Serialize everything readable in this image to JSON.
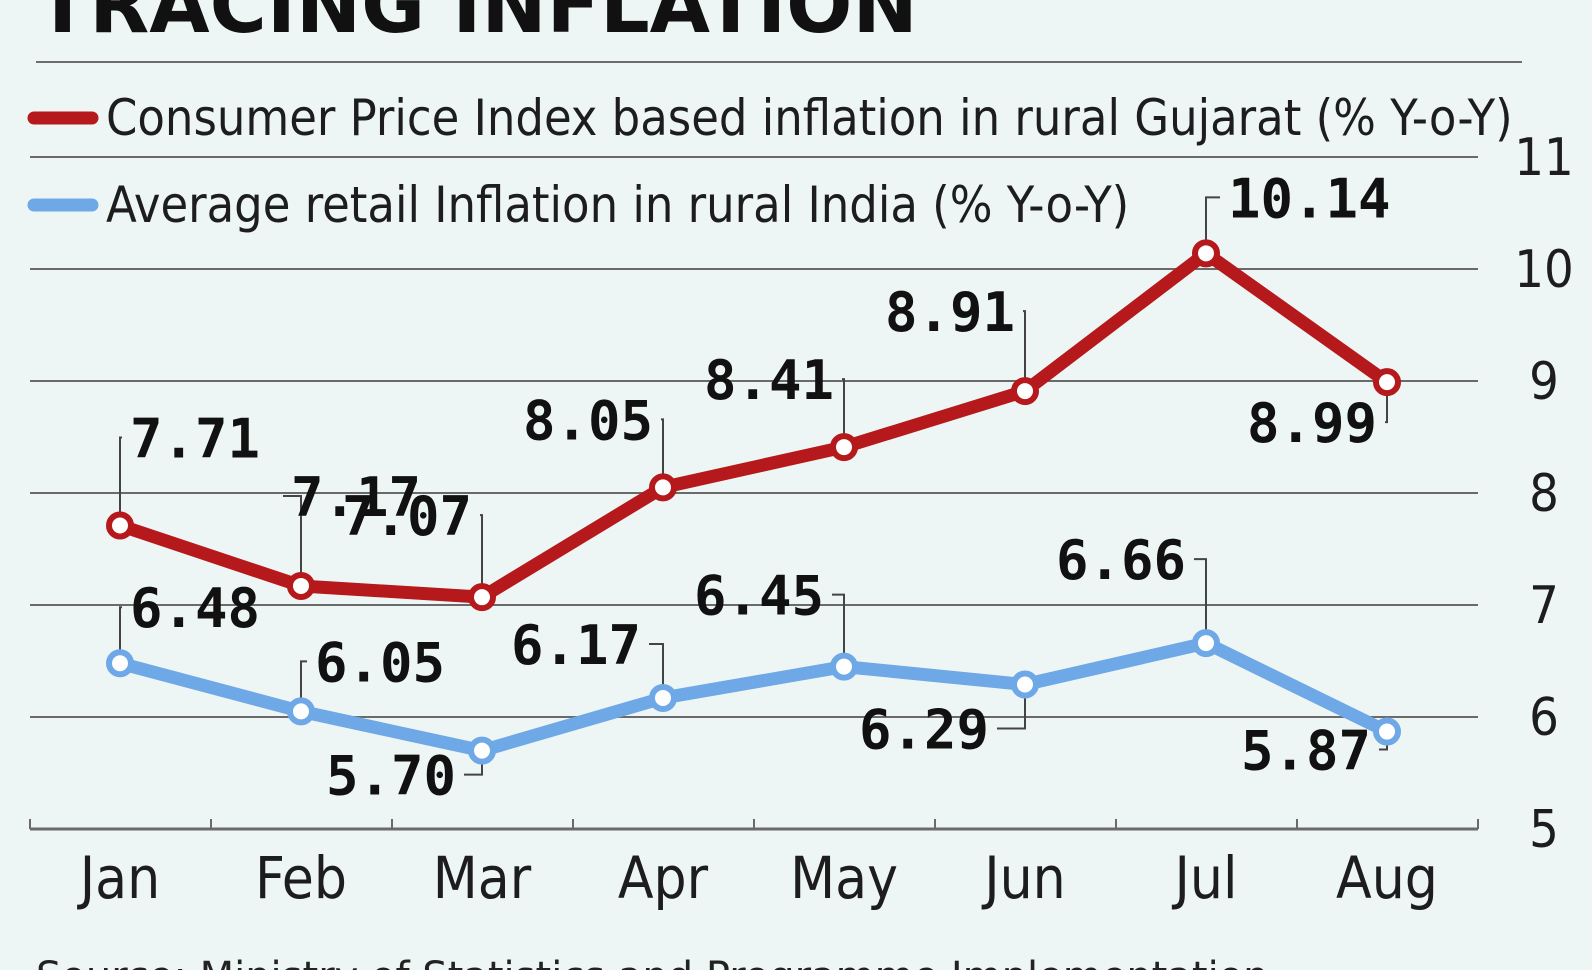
{
  "chart_data": {
    "type": "line",
    "title": "TRACING INFLATION",
    "categories": [
      "Jan",
      "Feb",
      "Mar",
      "Apr",
      "May",
      "Jun",
      "Jul",
      "Aug"
    ],
    "series": [
      {
        "name": "Consumer Price Index based inflation in rural Gujarat (% Y-o-Y)",
        "color": "#b5191c",
        "values": [
          7.71,
          7.17,
          7.07,
          8.05,
          8.41,
          8.91,
          10.14,
          8.99
        ],
        "labels": [
          "7.71",
          "7.17",
          "7.07",
          "8.05",
          "8.41",
          "8.91",
          "10.14",
          "8.99"
        ]
      },
      {
        "name": "Average retail Inflation in rural India (% Y-o-Y)",
        "color": "#6fa8e6",
        "values": [
          6.48,
          6.05,
          5.7,
          6.17,
          6.45,
          6.29,
          6.66,
          5.87
        ],
        "labels": [
          "6.48",
          "6.05",
          "5.70",
          "6.17",
          "6.45",
          "6.29",
          "6.66",
          "5.87"
        ]
      }
    ],
    "yaxis": {
      "min": 5,
      "max": 11,
      "ticks": [
        5,
        6,
        7,
        8,
        9,
        10,
        11
      ],
      "tick_labels": [
        "5",
        "6",
        "7",
        "8",
        "9",
        "10",
        "11"
      ],
      "position": "right"
    },
    "grid": true,
    "legend_position": "top-left",
    "source": "Source: Ministry of Statistics and Programme Implementation"
  }
}
